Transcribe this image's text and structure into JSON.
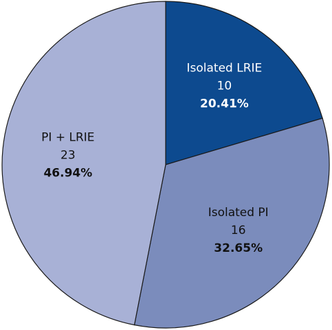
{
  "chart_data": {
    "type": "pie",
    "title": "",
    "slices": [
      {
        "label": "Isolated LRIE",
        "value": 10,
        "percent": "20.41%",
        "color": "#0d4a8f",
        "text_color": "#ffffff"
      },
      {
        "label": "Isolated PI",
        "value": 16,
        "percent": "32.65%",
        "color": "#7b8cbc",
        "text_color": "#111111"
      },
      {
        "label": "PI + LRIE",
        "value": 23,
        "percent": "46.94%",
        "color": "#a8b1d6",
        "text_color": "#111111"
      }
    ],
    "start_angle_deg": 0,
    "direction": "clockwise",
    "legend": "none"
  }
}
